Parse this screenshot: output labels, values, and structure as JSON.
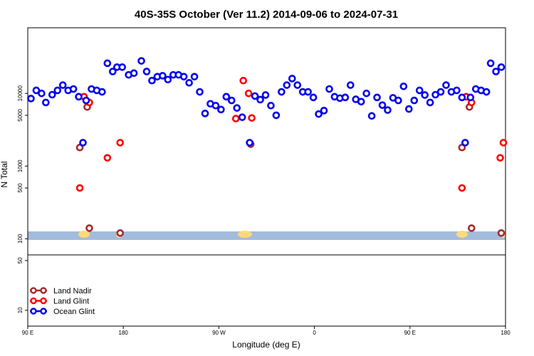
{
  "chart_data": {
    "type": "scatter",
    "title": "40S-35S October (Ver 11.2)   2014-09-06 to 2024-07-31",
    "xlabel": "Longitude (deg E)",
    "ylabel": "N Total",
    "x_scale": "linear",
    "y_scale": "log",
    "xlim": [
      90,
      540
    ],
    "x_ticks": [
      {
        "value": 90,
        "label": "90 E"
      },
      {
        "value": 180,
        "label": "180"
      },
      {
        "value": 270,
        "label": "90 W"
      },
      {
        "value": 360,
        "label": "0"
      },
      {
        "value": 450,
        "label": "90 E"
      },
      {
        "value": 540,
        "label": "180"
      }
    ],
    "y_ticks_upper": [
      "100",
      "500",
      "1000",
      "5000",
      "10000"
    ],
    "y_ticks_lower": [
      "10",
      "50"
    ],
    "upper_panel": {
      "ylim": [
        60,
        80000
      ]
    },
    "lower_panel": {
      "ylim": [
        6,
        60
      ]
    },
    "map_strip": {
      "ocean_color": "#a3bcdc",
      "land_color": "#ffd97a"
    },
    "series": [
      {
        "name": "Land Nadir",
        "color": "#a52a2a",
        "points": [
          [
            139,
            1800
          ],
          [
            146,
            6500
          ],
          [
            148,
            140
          ],
          [
            177,
            120
          ],
          [
            300,
            2000
          ],
          [
            499,
            1800
          ],
          [
            506,
            6500
          ],
          [
            508,
            140
          ],
          [
            536,
            120
          ]
        ]
      },
      {
        "name": "Land Glint",
        "color": "#ff0000",
        "points": [
          [
            139,
            500
          ],
          [
            143,
            9000
          ],
          [
            148,
            7500
          ],
          [
            165,
            1300
          ],
          [
            177,
            2100
          ],
          [
            286,
            4500
          ],
          [
            293,
            15000
          ],
          [
            298,
            10000
          ],
          [
            301,
            4600
          ],
          [
            499,
            500
          ],
          [
            503,
            9000
          ],
          [
            508,
            7500
          ],
          [
            535,
            1300
          ],
          [
            538,
            2100
          ]
        ]
      },
      {
        "name": "Ocean Glint",
        "color": "#0000ee",
        "points": [
          [
            93,
            8500
          ],
          [
            98,
            11000
          ],
          [
            103,
            10000
          ],
          [
            107,
            7500
          ],
          [
            113,
            9600
          ],
          [
            118,
            11000
          ],
          [
            123,
            13000
          ],
          [
            128,
            11000
          ],
          [
            133,
            11500
          ],
          [
            138,
            9000
          ],
          [
            142,
            2100
          ],
          [
            145,
            8000
          ],
          [
            150,
            11500
          ],
          [
            155,
            11000
          ],
          [
            160,
            10500
          ],
          [
            165,
            26000
          ],
          [
            170,
            20000
          ],
          [
            174,
            23000
          ],
          [
            179,
            23000
          ],
          [
            185,
            18000
          ],
          [
            190,
            19000
          ],
          [
            197,
            28000
          ],
          [
            202,
            20000
          ],
          [
            207,
            15000
          ],
          [
            212,
            17000
          ],
          [
            217,
            17500
          ],
          [
            222,
            15500
          ],
          [
            227,
            18000
          ],
          [
            232,
            18000
          ],
          [
            237,
            17000
          ],
          [
            242,
            14000
          ],
          [
            247,
            17000
          ],
          [
            252,
            10500
          ],
          [
            257,
            5300
          ],
          [
            262,
            7200
          ],
          [
            267,
            6800
          ],
          [
            272,
            6000
          ],
          [
            277,
            9000
          ],
          [
            282,
            8000
          ],
          [
            287,
            6300
          ],
          [
            292,
            4700
          ],
          [
            299,
            2100
          ],
          [
            304,
            9200
          ],
          [
            309,
            8200
          ],
          [
            314,
            9500
          ],
          [
            319,
            6800
          ],
          [
            324,
            5000
          ],
          [
            329,
            10500
          ],
          [
            334,
            13000
          ],
          [
            339,
            16000
          ],
          [
            344,
            13000
          ],
          [
            349,
            10500
          ],
          [
            354,
            10500
          ],
          [
            359,
            8800
          ],
          [
            364,
            5200
          ],
          [
            369,
            5800
          ],
          [
            374,
            11500
          ],
          [
            379,
            9000
          ],
          [
            384,
            8600
          ],
          [
            389,
            8800
          ],
          [
            394,
            13000
          ],
          [
            399,
            8300
          ],
          [
            404,
            7700
          ],
          [
            409,
            10000
          ],
          [
            414,
            4900
          ],
          [
            419,
            8800
          ],
          [
            424,
            6900
          ],
          [
            429,
            5900
          ],
          [
            434,
            8700
          ],
          [
            439,
            8000
          ],
          [
            444,
            12500
          ],
          [
            449,
            6100
          ],
          [
            454,
            8000
          ],
          [
            459,
            11000
          ],
          [
            464,
            9500
          ],
          [
            469,
            7500
          ],
          [
            474,
            9600
          ],
          [
            479,
            10500
          ],
          [
            484,
            13000
          ],
          [
            489,
            10500
          ],
          [
            494,
            11000
          ],
          [
            499,
            8800
          ],
          [
            502,
            2100
          ],
          [
            507,
            8800
          ],
          [
            512,
            11500
          ],
          [
            517,
            11000
          ],
          [
            522,
            10500
          ],
          [
            526,
            26000
          ],
          [
            531,
            20000
          ],
          [
            536,
            23000
          ]
        ]
      }
    ],
    "legend": {
      "position": "bottom-left",
      "entries": [
        "Land Nadir",
        "Land Glint",
        "Ocean Glint"
      ]
    },
    "grid": false
  }
}
